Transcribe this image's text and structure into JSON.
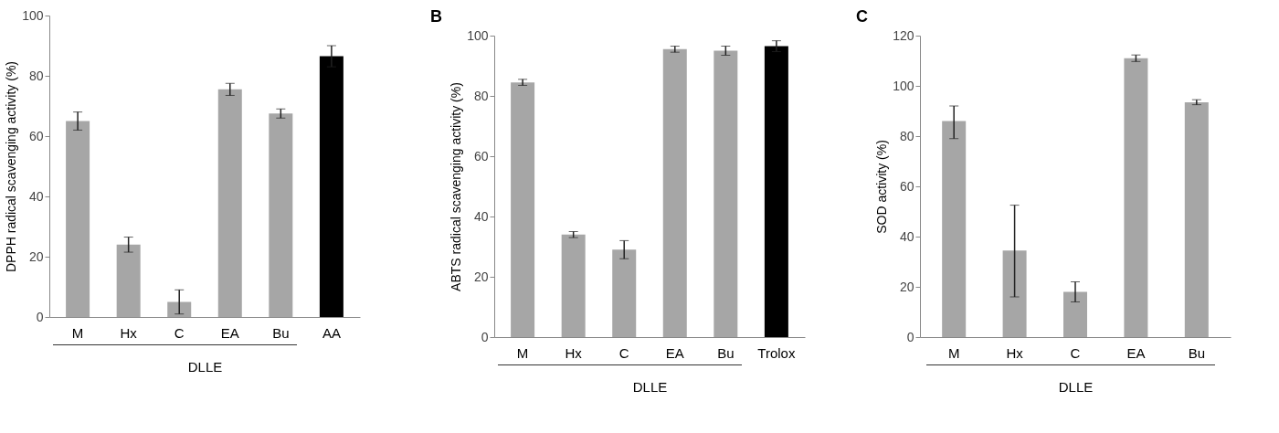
{
  "chart_data": [
    {
      "type": "bar",
      "ylabel": "DPPH radical scavenging activity (%)",
      "xlabel": "DLLE",
      "categories": [
        "M",
        "Hx",
        "C",
        "EA",
        "Bu",
        "AA"
      ],
      "values": [
        65,
        24,
        5,
        75.5,
        67.5,
        86.5
      ],
      "errors": [
        3,
        2.5,
        4,
        2,
        1.5,
        3.5
      ],
      "colors": [
        "#a6a6a6",
        "#a6a6a6",
        "#a6a6a6",
        "#a6a6a6",
        "#a6a6a6",
        "#000000"
      ],
      "ylim": [
        0,
        100
      ],
      "yticks": [
        0,
        20,
        40,
        60,
        80,
        100
      ],
      "grid": false
    },
    {
      "type": "bar",
      "title": "B",
      "ylabel": "ABTS radical scavenging activity (%)",
      "xlabel": "DLLE",
      "categories": [
        "M",
        "Hx",
        "C",
        "EA",
        "Bu",
        "Trolox"
      ],
      "values": [
        84.5,
        34,
        29,
        95.5,
        95,
        96.5
      ],
      "errors": [
        1,
        1,
        3,
        1,
        1.5,
        1.8
      ],
      "colors": [
        "#a6a6a6",
        "#a6a6a6",
        "#a6a6a6",
        "#a6a6a6",
        "#a6a6a6",
        "#000000"
      ],
      "ylim": [
        0,
        100
      ],
      "yticks": [
        0,
        20,
        40,
        60,
        80,
        100
      ],
      "grid": false
    },
    {
      "type": "bar",
      "title": "C",
      "ylabel": "SOD activity (%)",
      "xlabel": "DLLE",
      "categories": [
        "M",
        "Hx",
        "C",
        "EA",
        "Bu"
      ],
      "values": [
        86,
        34.5,
        18,
        111,
        93.5
      ],
      "errors": [
        [
          79,
          92
        ],
        [
          16,
          52.5
        ],
        4,
        1.3,
        1
      ],
      "colors": [
        "#a6a6a6",
        "#a6a6a6",
        "#a6a6a6",
        "#a6a6a6",
        "#a6a6a6"
      ],
      "ylim": [
        0,
        120
      ],
      "yticks": [
        0,
        20,
        40,
        60,
        80,
        100,
        120
      ],
      "grid": false
    }
  ]
}
